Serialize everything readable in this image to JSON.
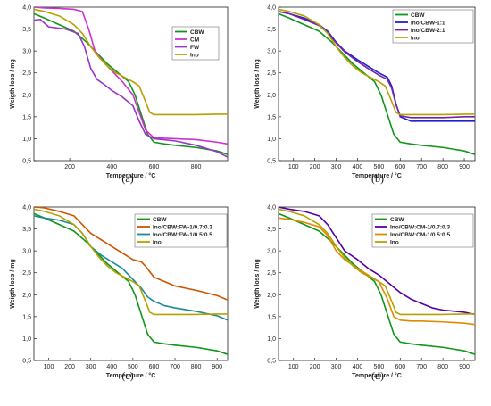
{
  "chart_data": [
    {
      "type": "line",
      "panel_label": "(a)",
      "xlabel": "Temperature / °C",
      "ylabel": "Weigth loss / mg",
      "xlim": [
        30,
        950
      ],
      "ylim": [
        0.5,
        4.0
      ],
      "xticks": [
        200,
        400,
        600,
        800
      ],
      "yticks": [
        0.5,
        1.0,
        1.5,
        2.0,
        2.5,
        3.0,
        3.5,
        4.0
      ],
      "ytick_labels": [
        "0,5",
        "1,0",
        "1,5",
        "2,0",
        "2,5",
        "3,0",
        "3,5",
        "4,0"
      ],
      "grid": false,
      "legend_position": "top-right",
      "series": [
        {
          "name": "CBW",
          "color": "#109618",
          "x": [
            30,
            80,
            150,
            220,
            280,
            330,
            380,
            430,
            480,
            510,
            540,
            570,
            600,
            650,
            700,
            800,
            900,
            950
          ],
          "y": [
            3.85,
            3.75,
            3.6,
            3.45,
            3.2,
            2.95,
            2.7,
            2.5,
            2.3,
            2.0,
            1.55,
            1.1,
            0.92,
            0.88,
            0.85,
            0.8,
            0.72,
            0.64
          ]
        },
        {
          "name": "CM",
          "color": "#cc33cc",
          "x": [
            30,
            80,
            150,
            220,
            260,
            290,
            320,
            360,
            400,
            450,
            500,
            530,
            560,
            600,
            700,
            800,
            900,
            950
          ],
          "y": [
            4.0,
            3.98,
            3.97,
            3.95,
            3.9,
            3.5,
            3.0,
            2.75,
            2.55,
            2.3,
            2.0,
            1.6,
            1.2,
            1.02,
            1.0,
            0.98,
            0.92,
            0.88
          ]
        },
        {
          "name": "FW",
          "color": "#9933cc",
          "x": [
            30,
            60,
            100,
            180,
            240,
            270,
            300,
            330,
            360,
            400,
            450,
            500,
            530,
            560,
            600,
            700,
            800,
            900,
            950
          ],
          "y": [
            3.7,
            3.72,
            3.55,
            3.5,
            3.4,
            3.1,
            2.6,
            2.35,
            2.25,
            2.1,
            1.95,
            1.75,
            1.4,
            1.1,
            1.0,
            0.95,
            0.85,
            0.7,
            0.58
          ]
        },
        {
          "name": "Ino",
          "color": "#b8a000",
          "x": [
            30,
            80,
            150,
            220,
            260,
            300,
            340,
            380,
            420,
            460,
            500,
            530,
            560,
            580,
            600,
            700,
            800,
            900,
            950
          ],
          "y": [
            3.95,
            3.9,
            3.8,
            3.6,
            3.4,
            3.1,
            2.85,
            2.65,
            2.5,
            2.4,
            2.3,
            2.2,
            1.85,
            1.6,
            1.55,
            1.55,
            1.55,
            1.56,
            1.56
          ]
        }
      ]
    },
    {
      "type": "line",
      "panel_label": "(b)",
      "xlabel": "Temperature / °C",
      "ylabel": "Weigth loss / mg",
      "xlim": [
        30,
        950
      ],
      "ylim": [
        0.5,
        4.0
      ],
      "xticks": [
        100,
        200,
        300,
        400,
        500,
        600,
        700,
        800,
        900
      ],
      "yticks": [
        0.5,
        1.0,
        1.5,
        2.0,
        2.5,
        3.0,
        3.5,
        4.0
      ],
      "ytick_labels": [
        "0,5",
        "1,0",
        "1,5",
        "2,0",
        "2,5",
        "3,0",
        "3,5",
        "4,0"
      ],
      "grid": false,
      "legend_position": "top-right",
      "series": [
        {
          "name": "CBW",
          "color": "#109618",
          "x": [
            30,
            80,
            150,
            220,
            280,
            330,
            380,
            430,
            480,
            510,
            540,
            570,
            600,
            650,
            700,
            800,
            900,
            950
          ],
          "y": [
            3.85,
            3.75,
            3.6,
            3.45,
            3.2,
            2.95,
            2.7,
            2.5,
            2.3,
            2.0,
            1.55,
            1.1,
            0.92,
            0.88,
            0.85,
            0.8,
            0.72,
            0.64
          ]
        },
        {
          "name": "Ino/CBW-1:1",
          "color": "#2222cc",
          "x": [
            30,
            80,
            150,
            220,
            260,
            300,
            340,
            400,
            450,
            500,
            540,
            560,
            580,
            600,
            650,
            700,
            800,
            900,
            950
          ],
          "y": [
            3.9,
            3.85,
            3.75,
            3.6,
            3.45,
            3.2,
            3.0,
            2.8,
            2.65,
            2.5,
            2.4,
            2.2,
            1.8,
            1.5,
            1.4,
            1.4,
            1.4,
            1.4,
            1.4
          ]
        },
        {
          "name": "Ino/CBW-2:1",
          "color": "#7722aa",
          "x": [
            30,
            80,
            150,
            220,
            260,
            300,
            340,
            400,
            450,
            500,
            540,
            560,
            580,
            600,
            650,
            700,
            800,
            900,
            950
          ],
          "y": [
            3.9,
            3.85,
            3.72,
            3.58,
            3.42,
            3.18,
            2.98,
            2.76,
            2.6,
            2.45,
            2.35,
            2.15,
            1.78,
            1.52,
            1.48,
            1.48,
            1.48,
            1.5,
            1.5
          ]
        },
        {
          "name": "Ino",
          "color": "#b8a000",
          "x": [
            30,
            80,
            150,
            220,
            260,
            300,
            340,
            380,
            420,
            460,
            500,
            530,
            560,
            580,
            600,
            700,
            800,
            900,
            950
          ],
          "y": [
            3.95,
            3.9,
            3.8,
            3.6,
            3.4,
            3.1,
            2.85,
            2.65,
            2.5,
            2.4,
            2.3,
            2.2,
            1.85,
            1.6,
            1.55,
            1.55,
            1.55,
            1.56,
            1.56
          ]
        }
      ]
    },
    {
      "type": "line",
      "panel_label": "(c)",
      "xlabel": "Temperature / °C",
      "ylabel": "Weigth loss / mg",
      "xlim": [
        30,
        950
      ],
      "ylim": [
        0.5,
        4.0
      ],
      "xticks": [
        100,
        200,
        300,
        400,
        500,
        600,
        700,
        800,
        900
      ],
      "yticks": [
        0.5,
        1.0,
        1.5,
        2.0,
        2.5,
        3.0,
        3.5,
        4.0
      ],
      "ytick_labels": [
        "0,5",
        "1,0",
        "1,5",
        "2,0",
        "2,5",
        "3,0",
        "3,5",
        "4,0"
      ],
      "grid": false,
      "legend_position": "top-right",
      "series": [
        {
          "name": "CBW",
          "color": "#109618",
          "x": [
            30,
            80,
            150,
            220,
            280,
            330,
            380,
            430,
            480,
            510,
            540,
            570,
            600,
            650,
            700,
            800,
            900,
            950
          ],
          "y": [
            3.85,
            3.75,
            3.6,
            3.45,
            3.2,
            2.95,
            2.7,
            2.5,
            2.3,
            2.0,
            1.55,
            1.1,
            0.92,
            0.88,
            0.85,
            0.8,
            0.72,
            0.64
          ]
        },
        {
          "name": "Ino/CBW:FW-1/0.7:0.3",
          "color": "#cc5500",
          "x": [
            30,
            80,
            150,
            220,
            260,
            300,
            350,
            400,
            450,
            500,
            540,
            560,
            600,
            650,
            700,
            800,
            900,
            950
          ],
          "y": [
            4.0,
            3.98,
            3.9,
            3.8,
            3.6,
            3.4,
            3.25,
            3.1,
            2.95,
            2.8,
            2.75,
            2.65,
            2.4,
            2.3,
            2.2,
            2.1,
            1.98,
            1.88
          ]
        },
        {
          "name": "Ino/CBW:FW-1/0.5:0.5",
          "color": "#1a8a9a",
          "x": [
            30,
            80,
            150,
            220,
            260,
            300,
            350,
            400,
            450,
            500,
            540,
            570,
            600,
            650,
            700,
            800,
            900,
            950
          ],
          "y": [
            3.8,
            3.75,
            3.7,
            3.6,
            3.4,
            3.1,
            2.9,
            2.75,
            2.6,
            2.35,
            2.15,
            1.95,
            1.85,
            1.75,
            1.7,
            1.62,
            1.52,
            1.42
          ]
        },
        {
          "name": "Ino",
          "color": "#b8a000",
          "x": [
            30,
            80,
            150,
            220,
            260,
            300,
            340,
            380,
            420,
            460,
            500,
            530,
            560,
            580,
            600,
            700,
            800,
            900,
            950
          ],
          "y": [
            3.95,
            3.9,
            3.8,
            3.6,
            3.4,
            3.1,
            2.85,
            2.65,
            2.5,
            2.4,
            2.3,
            2.2,
            1.85,
            1.6,
            1.55,
            1.55,
            1.55,
            1.56,
            1.56
          ]
        }
      ]
    },
    {
      "type": "line",
      "panel_label": "(d)",
      "xlabel": "Temperature / °C",
      "ylabel": "Weigth loss / mg",
      "xlim": [
        30,
        950
      ],
      "ylim": [
        0.5,
        4.0
      ],
      "xticks": [
        100,
        200,
        300,
        400,
        500,
        600,
        700,
        800,
        900
      ],
      "yticks": [
        0.5,
        1.0,
        1.5,
        2.0,
        2.5,
        3.0,
        3.5,
        4.0
      ],
      "ytick_labels": [
        "0,5",
        "1,0",
        "1,5",
        "2,0",
        "2,5",
        "3,0",
        "3,5",
        "4,0"
      ],
      "grid": false,
      "legend_position": "top-right",
      "series": [
        {
          "name": "CBW",
          "color": "#109618",
          "x": [
            30,
            80,
            150,
            220,
            280,
            330,
            380,
            430,
            480,
            510,
            540,
            570,
            600,
            650,
            700,
            800,
            900,
            950
          ],
          "y": [
            3.85,
            3.75,
            3.6,
            3.45,
            3.2,
            2.95,
            2.7,
            2.5,
            2.3,
            2.0,
            1.55,
            1.1,
            0.92,
            0.88,
            0.85,
            0.8,
            0.72,
            0.64
          ]
        },
        {
          "name": "Ino/CBW:CM-1/0.7:0.3",
          "color": "#5500aa",
          "x": [
            30,
            80,
            150,
            220,
            260,
            300,
            340,
            400,
            450,
            500,
            550,
            600,
            650,
            700,
            750,
            800,
            900,
            950
          ],
          "y": [
            4.0,
            3.95,
            3.9,
            3.8,
            3.6,
            3.3,
            3.0,
            2.8,
            2.6,
            2.45,
            2.25,
            2.05,
            1.9,
            1.8,
            1.7,
            1.65,
            1.6,
            1.55
          ]
        },
        {
          "name": "Ino/CBW:CM-1/0.5:0.5",
          "color": "#e08a00",
          "x": [
            30,
            80,
            150,
            220,
            260,
            300,
            340,
            400,
            450,
            500,
            540,
            570,
            600,
            650,
            700,
            800,
            900,
            950
          ],
          "y": [
            3.75,
            3.72,
            3.65,
            3.55,
            3.35,
            3.0,
            2.8,
            2.6,
            2.45,
            2.3,
            1.9,
            1.5,
            1.42,
            1.4,
            1.4,
            1.38,
            1.35,
            1.32
          ]
        },
        {
          "name": "Ino",
          "color": "#b8a000",
          "x": [
            30,
            80,
            150,
            220,
            260,
            300,
            340,
            380,
            420,
            460,
            500,
            530,
            560,
            580,
            600,
            700,
            800,
            900,
            950
          ],
          "y": [
            3.95,
            3.9,
            3.8,
            3.6,
            3.4,
            3.1,
            2.85,
            2.65,
            2.5,
            2.4,
            2.3,
            2.2,
            1.85,
            1.6,
            1.55,
            1.55,
            1.55,
            1.56,
            1.56
          ]
        }
      ]
    }
  ]
}
